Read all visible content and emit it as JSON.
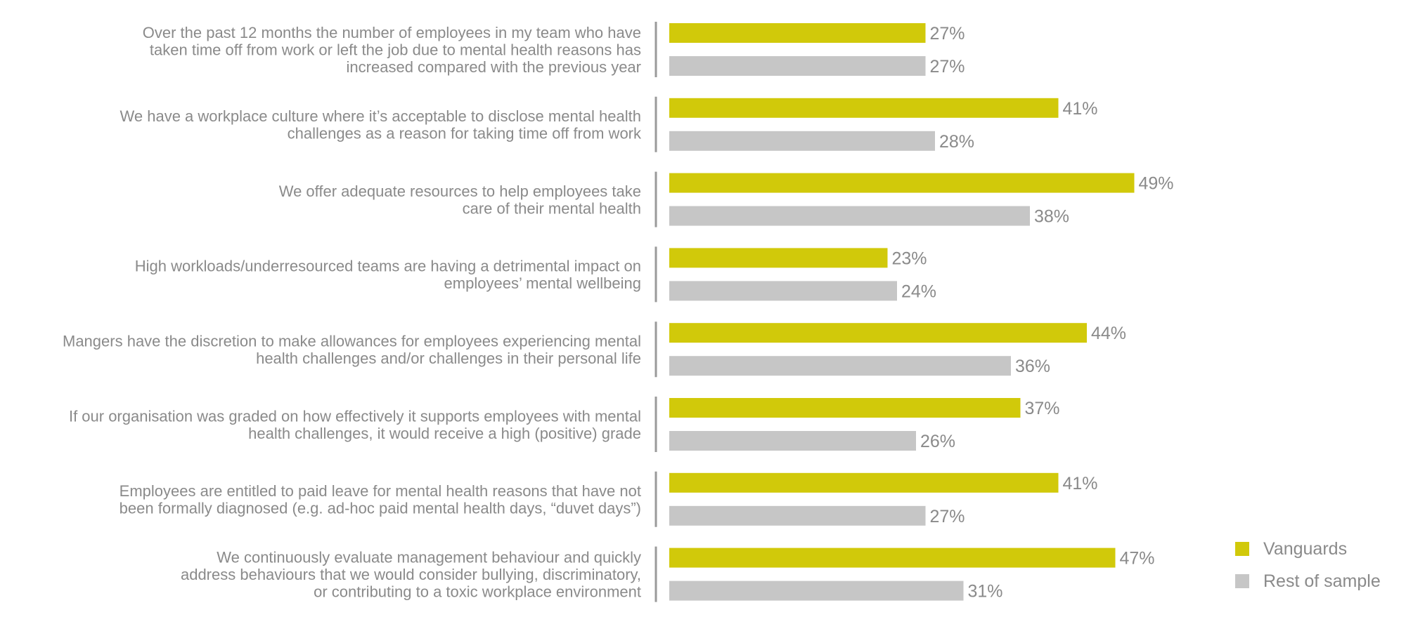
{
  "chart_data": {
    "type": "bar",
    "orientation": "horizontal",
    "title": "",
    "xlabel": "",
    "ylabel": "",
    "xlim": [
      0,
      100
    ],
    "grid": false,
    "legend_position": "bottom-right",
    "value_suffix": "%",
    "categories": [
      [
        "Over the past 12 months the number of employees in my team who have",
        "taken time off from work or left the job due to mental health reasons has",
        "increased compared with the previous year"
      ],
      [
        "We have a workplace culture where it’s acceptable to disclose mental health",
        "challenges as a reason for taking time off from work"
      ],
      [
        "We offer adequate resources to help employees take",
        "care of their mental health"
      ],
      [
        "High workloads/underresourced teams are having a detrimental impact on",
        "employees’ mental wellbeing"
      ],
      [
        "Mangers have the discretion to make allowances for employees experiencing mental",
        "health challenges and/or challenges in their personal life"
      ],
      [
        "If our organisation was graded on how effectively it supports employees with mental",
        "health challenges, it would receive a high (positive) grade"
      ],
      [
        "Employees are entitled to paid leave for mental health reasons that have not",
        "been formally diagnosed (e.g. ad-hoc paid mental health days, “duvet days”)"
      ],
      [
        "We continuously evaluate management behaviour and quickly",
        "address behaviours that we would consider bullying, discriminatory,",
        "or contributing to a toxic workplace environment"
      ]
    ],
    "series": [
      {
        "name": "Vanguards",
        "color": "#d1c90a",
        "values": [
          27,
          41,
          49,
          23,
          44,
          37,
          41,
          47
        ]
      },
      {
        "name": "Rest of sample",
        "color": "#c6c6c6",
        "values": [
          27,
          28,
          38,
          24,
          36,
          26,
          27,
          31
        ]
      }
    ]
  }
}
